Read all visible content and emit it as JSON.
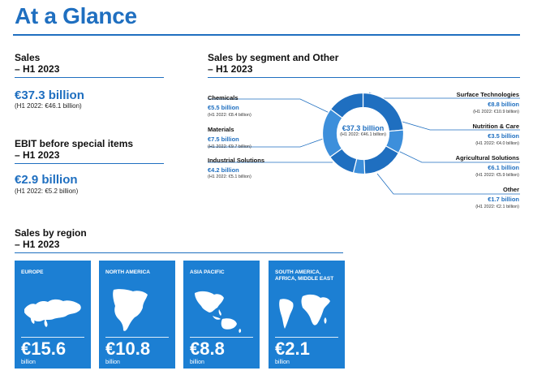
{
  "title": "At a Glance",
  "sales": {
    "heading": "Sales",
    "period": "– H1 2023",
    "value": "€37.3 billion",
    "prev": "(H1 2022: €46.1 billion)"
  },
  "ebit": {
    "heading": "EBIT before special items",
    "period": "– H1 2023",
    "value": "€2.9 billion",
    "prev": "(H1 2022: €5.2 billion)"
  },
  "segments": {
    "heading": "Sales by segment and Other",
    "period": "– H1 2023",
    "center_value": "€37.3 billion",
    "center_prev": "(H1 2022: €46.1 billion)",
    "items": [
      {
        "name": "Chemicals",
        "value": "€5.5 billion",
        "prev": "(H1 2022: €8.4 billion)",
        "share": 5.5
      },
      {
        "name": "Materials",
        "value": "€7.5 billion",
        "prev": "(H1 2022: €9.7 billion)",
        "share": 7.5
      },
      {
        "name": "Industrial Solutions",
        "value": "€4.2 billion",
        "prev": "(H1 2022: €5.1 billion)",
        "share": 4.2
      },
      {
        "name": "Surface Technologies",
        "value": "€8.8 billion",
        "prev": "(H1 2022: €10.9 billion)",
        "share": 8.8
      },
      {
        "name": "Nutrition & Care",
        "value": "€3.5 billion",
        "prev": "(H1 2022: €4.0 billion)",
        "share": 3.5
      },
      {
        "name": "Agricultural Solutions",
        "value": "€6.1 billion",
        "prev": "(H1 2022: €5.9 billion)",
        "share": 6.1
      },
      {
        "name": "Other",
        "value": "€1.7 billion",
        "prev": "(H1 2022: €2.1 billion)",
        "share": 1.7
      }
    ]
  },
  "regions": {
    "heading": "Sales by region",
    "period": "– H1 2023",
    "tiles": [
      {
        "name": "EUROPE",
        "value": "€15.6",
        "unit": "billion",
        "icon": "europe-map-icon"
      },
      {
        "name": "NORTH AMERICA",
        "value": "€10.8",
        "unit": "billion",
        "icon": "north-america-map-icon"
      },
      {
        "name": "ASIA PACIFIC",
        "value": "€8.8",
        "unit": "billion",
        "icon": "asia-pacific-map-icon"
      },
      {
        "name": "SOUTH AMERICA, AFRICA, MIDDLE EAST",
        "value": "€2.1",
        "unit": "billion",
        "icon": "south-america-africa-map-icon"
      }
    ]
  },
  "colors": {
    "accent": "#1f6fc0",
    "tile": "#1c7fd3",
    "donut_dark": "#1f6fc0",
    "donut_light": "#3d8fdb"
  }
}
